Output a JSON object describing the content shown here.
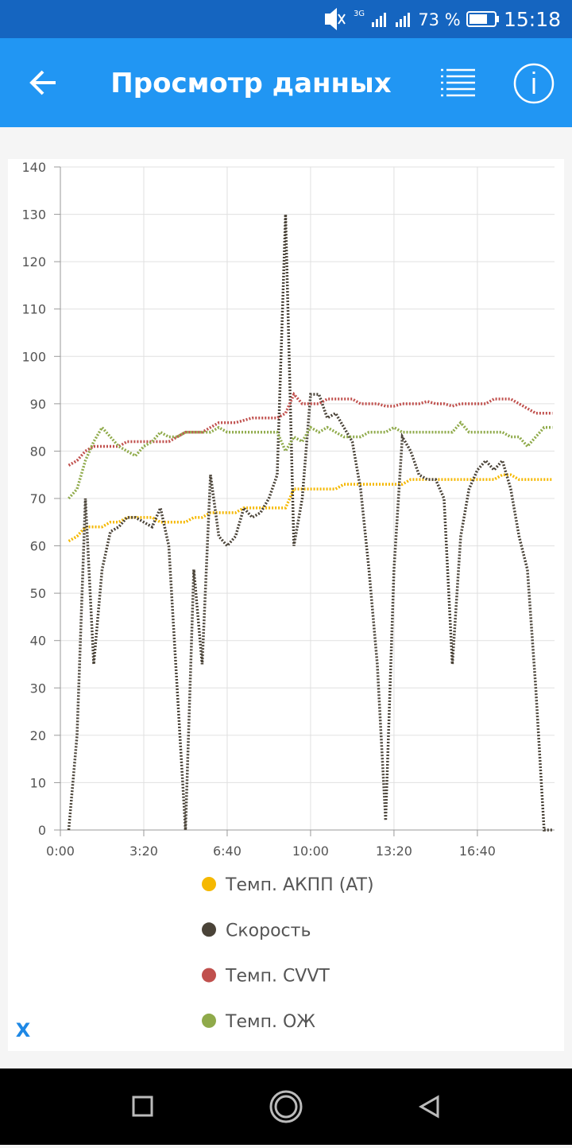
{
  "status_bar": {
    "network": "3G",
    "battery": "73 %",
    "time": "15:18"
  },
  "app_bar": {
    "title": "Просмотр данных"
  },
  "chart_data": {
    "type": "line",
    "x": [
      20,
      40,
      60,
      80,
      100,
      120,
      140,
      160,
      180,
      200,
      220,
      240,
      260,
      280,
      300,
      320,
      340,
      360,
      380,
      400,
      420,
      440,
      460,
      480,
      500,
      520,
      540,
      560,
      580,
      600,
      620,
      640,
      660,
      680,
      700,
      720,
      740,
      760,
      780,
      800,
      820,
      840,
      860,
      880,
      900,
      920,
      940,
      960,
      980,
      1000,
      1020,
      1040,
      1060,
      1080,
      1100,
      1120,
      1140,
      1160,
      1180
    ],
    "xlim": [
      0,
      1185
    ],
    "xticks": [
      {
        "value": 0,
        "label": "0:00"
      },
      {
        "value": 200,
        "label": "3:20"
      },
      {
        "value": 400,
        "label": "6:40"
      },
      {
        "value": 600,
        "label": "10:00"
      },
      {
        "value": 800,
        "label": "13:20"
      },
      {
        "value": 1000,
        "label": "16:40"
      }
    ],
    "ylim": [
      0,
      140
    ],
    "yticks": [
      0,
      10,
      20,
      30,
      40,
      50,
      60,
      70,
      80,
      90,
      100,
      110,
      120,
      130,
      140
    ],
    "grid": true,
    "legend": "bottom",
    "series": [
      {
        "name": "Темп. АКПП (AT)",
        "color": "#f5b800",
        "values": [
          61,
          62,
          64,
          64,
          64,
          65,
          65,
          66,
          66,
          66,
          66,
          65,
          65,
          65,
          65,
          66,
          66,
          67,
          67,
          67,
          67,
          68,
          68,
          68,
          68,
          68,
          68,
          72,
          72,
          72,
          72,
          72,
          72,
          73,
          73,
          73,
          73,
          73,
          73,
          73,
          73,
          74,
          74,
          74,
          74,
          74,
          74,
          74,
          74,
          74,
          74,
          74,
          75,
          75,
          74,
          74,
          74,
          74,
          74
        ]
      },
      {
        "name": "Скорость",
        "color": "#4a4338",
        "values": [
          0,
          20,
          70,
          35,
          55,
          63,
          64,
          66,
          66,
          65,
          64,
          68,
          60,
          30,
          0,
          55,
          35,
          75,
          62,
          60,
          62,
          68,
          66,
          67,
          70,
          75,
          130,
          60,
          70,
          92,
          92,
          87,
          88,
          85,
          82,
          72,
          55,
          35,
          2,
          55,
          83,
          80,
          75,
          74,
          74,
          70,
          35,
          62,
          72,
          76,
          78,
          76,
          78,
          72,
          62,
          55,
          30,
          0,
          0
        ]
      },
      {
        "name": "Темп. CVVT",
        "color": "#c0504d",
        "values": [
          77,
          78,
          80,
          81,
          81,
          81,
          81,
          82,
          82,
          82,
          82,
          82,
          82,
          83,
          84,
          84,
          84,
          85,
          86,
          86,
          86,
          86.5,
          87,
          87,
          87,
          87,
          88,
          92,
          90,
          90,
          90,
          91,
          91,
          91,
          91,
          90,
          90,
          90,
          89.5,
          89.5,
          90,
          90,
          90,
          90.5,
          90,
          90,
          89.5,
          90,
          90,
          90,
          90,
          91,
          91,
          91,
          90,
          89,
          88,
          88,
          88
        ]
      },
      {
        "name": "Темп. ОЖ",
        "color": "#8faa4a",
        "values": [
          70,
          72,
          78,
          82,
          85,
          83,
          81,
          80,
          79,
          81,
          82,
          84,
          83,
          83,
          84,
          84,
          84,
          84,
          85,
          84,
          84,
          84,
          84,
          84,
          84,
          84,
          80,
          83,
          82,
          85,
          84,
          85,
          84,
          83,
          83,
          83,
          84,
          84,
          84,
          85,
          84,
          84,
          84,
          84,
          84,
          84,
          84,
          86,
          84,
          84,
          84,
          84,
          84,
          83,
          83,
          81,
          83,
          85,
          85
        ]
      }
    ]
  },
  "close_button": "X"
}
